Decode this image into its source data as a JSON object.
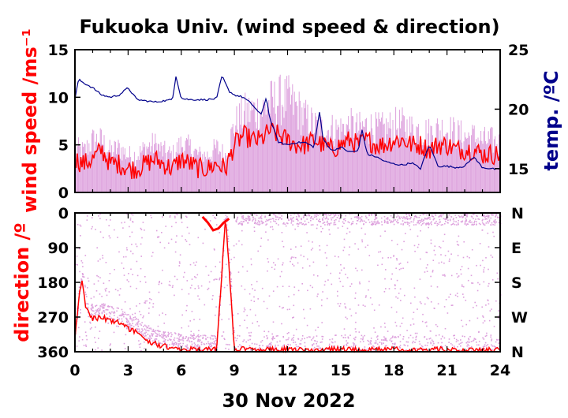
{
  "chart_data": [
    {
      "type": "line",
      "title": "Fukuoka Univ. (wind speed & direction)",
      "xlabel": "30 Nov 2022",
      "ylabel": "wind speed /ms⁻¹",
      "y2label": "temp. /ºC",
      "xlim": [
        0,
        24
      ],
      "ylim": [
        0,
        15
      ],
      "y2lim": [
        13,
        25
      ],
      "x_ticks": [
        "0",
        "3",
        "6",
        "9",
        "12",
        "15",
        "18",
        "21",
        "24"
      ],
      "y_ticks": [
        "0",
        "5",
        "10",
        "15"
      ],
      "y2_ticks": [
        "15",
        "20",
        "25"
      ],
      "colors": {
        "gust": "#dda0dd",
        "mean": "#ff0000",
        "temp": "#00008b"
      },
      "series": [
        {
          "role": "mean wind speed",
          "x": [
            0,
            0.5,
            1,
            1.5,
            2,
            2.5,
            3,
            3.5,
            4,
            4.5,
            5,
            5.5,
            6,
            6.5,
            7,
            7.5,
            8,
            8.5,
            9,
            9.5,
            10,
            10.5,
            11,
            11.5,
            12,
            12.5,
            13,
            13.5,
            14,
            14.5,
            15,
            15.5,
            16,
            16.5,
            17,
            17.5,
            18,
            18.5,
            19,
            19.5,
            20,
            20.5,
            21,
            21.5,
            22,
            22.5,
            23,
            23.5,
            24
          ],
          "y": [
            3.5,
            3,
            3.5,
            4.5,
            3,
            3,
            2.5,
            2.5,
            3,
            3.5,
            3,
            2.5,
            3.5,
            3,
            2.5,
            2.5,
            3,
            2.5,
            5,
            6,
            5.5,
            5.5,
            6.5,
            6,
            5.5,
            5,
            5,
            5.5,
            5,
            4.5,
            5,
            5.5,
            5,
            5.5,
            5,
            5,
            5.5,
            5.5,
            5,
            5,
            4.5,
            5,
            5,
            4.5,
            4.5,
            4.5,
            4,
            4,
            4
          ]
        },
        {
          "role": "peak wind speed",
          "x": [
            0,
            0.5,
            1,
            1.5,
            2,
            2.5,
            3,
            3.5,
            4,
            4.5,
            5,
            5.5,
            6,
            6.5,
            7,
            7.5,
            8,
            8.5,
            9,
            9.5,
            10,
            10.5,
            11,
            11.5,
            12,
            12.5,
            13,
            13.5,
            14,
            14.5,
            15,
            15.5,
            16,
            16.5,
            17,
            17.5,
            18,
            18.5,
            19,
            19.5,
            20,
            20.5,
            21,
            21.5,
            22,
            22.5,
            23,
            23.5,
            24
          ],
          "y": [
            6,
            5.5,
            7,
            7,
            5.5,
            6,
            5,
            5,
            6,
            6.5,
            5.5,
            5,
            6.5,
            6,
            5,
            5,
            6,
            5,
            9,
            10.5,
            11,
            11,
            12,
            12.5,
            12.5,
            11.5,
            10,
            9,
            8.5,
            8.5,
            8.5,
            9,
            8.5,
            9,
            8.5,
            8.5,
            9,
            9,
            8.5,
            8.5,
            8,
            8.5,
            8.5,
            8,
            7.5,
            7.5,
            7,
            7,
            6.5
          ]
        },
        {
          "role": "temperature",
          "axis": "right",
          "x": [
            0,
            0.2,
            0.5,
            1,
            1.5,
            2,
            2.5,
            3,
            3.5,
            4,
            4.5,
            5,
            5.5,
            5.7,
            6,
            6.5,
            7,
            7.5,
            8,
            8.3,
            8.7,
            9,
            9.5,
            10,
            10.5,
            10.8,
            11,
            11.5,
            12,
            12.5,
            13,
            13.5,
            13.8,
            14,
            14.5,
            15,
            15.5,
            16,
            16.2,
            16.5,
            17,
            17.5,
            18,
            18.5,
            19,
            19.5,
            20,
            20.5,
            21,
            21.5,
            22,
            22.5,
            23,
            23.5,
            24
          ],
          "y": [
            20.8,
            22.5,
            22.2,
            21.8,
            21.2,
            21,
            21.2,
            21.8,
            20.8,
            20.7,
            20.6,
            20.7,
            20.8,
            22.8,
            20.9,
            20.8,
            20.8,
            20.8,
            20.9,
            22.8,
            21.5,
            21.2,
            21,
            20.4,
            19.5,
            21,
            19.2,
            17.2,
            17,
            17.2,
            17.2,
            16.8,
            19.8,
            17.5,
            16.5,
            16.8,
            16.4,
            16.5,
            18.3,
            16.2,
            16,
            15.6,
            15.4,
            15.3,
            15.5,
            15,
            17,
            15.2,
            15.2,
            15.1,
            15.2,
            16,
            15.1,
            15,
            14.9
          ]
        }
      ]
    },
    {
      "type": "scatter",
      "xlabel": "30 Nov 2022",
      "ylabel": "direction /º",
      "xlim": [
        0,
        24
      ],
      "ylim": [
        360,
        0
      ],
      "x_ticks": [
        "0",
        "3",
        "6",
        "9",
        "12",
        "15",
        "18",
        "21",
        "24"
      ],
      "y_ticks": [
        "0",
        "90",
        "180",
        "270",
        "360"
      ],
      "y2_ticks": [
        "N",
        "E",
        "S",
        "W",
        "N"
      ],
      "colors": {
        "scatter": "#dda0dd",
        "mean": "#ff0000"
      },
      "series": [
        {
          "role": "mean direction",
          "x": [
            0,
            0.2,
            0.4,
            0.6,
            1,
            1.5,
            2,
            2.5,
            3,
            3.5,
            4,
            4.5,
            5,
            5.5,
            6,
            7,
            8,
            8.5,
            9,
            10,
            11,
            12,
            13,
            14,
            15,
            16,
            17,
            18,
            19,
            20,
            21,
            22,
            23,
            24
          ],
          "y": [
            330,
            230,
            170,
            250,
            275,
            270,
            280,
            285,
            300,
            310,
            330,
            340,
            345,
            350,
            352,
            355,
            355,
            10,
            352,
            355,
            355,
            354,
            356,
            355,
            354,
            356,
            355,
            354,
            356,
            355,
            354,
            356,
            355,
            355
          ]
        },
        {
          "role": "northerly episode",
          "x": [
            7.2,
            7.5,
            7.8,
            8.1,
            8.4,
            8.7
          ],
          "y": [
            10,
            25,
            45,
            40,
            25,
            15
          ]
        }
      ]
    }
  ]
}
